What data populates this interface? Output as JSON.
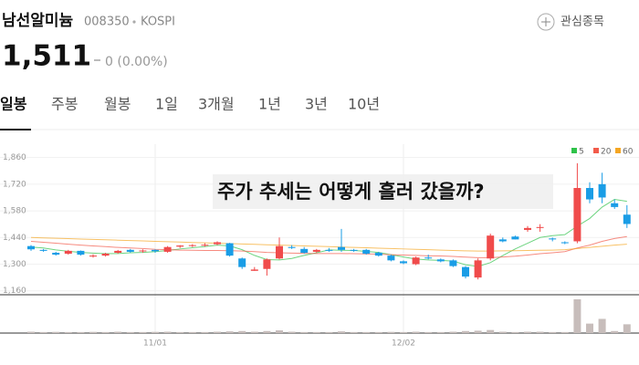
{
  "header": {
    "name": "남선알미늄",
    "code": "008350",
    "market": "KOSPI",
    "watch_label": "관심종목"
  },
  "quote": {
    "price": "1,511",
    "change": "0 (0.00%)"
  },
  "tabs": [
    "일봉",
    "주봉",
    "월봉",
    "1일",
    "3개월",
    "1년",
    "3년",
    "10년"
  ],
  "chart_data": {
    "type": "candlestick",
    "title": "주가 추세는 어떻게 흘러 갔을까?",
    "categories": [
      null,
      null,
      null,
      null,
      null,
      null,
      null,
      null,
      null,
      null,
      "11/01",
      null,
      null,
      null,
      null,
      null,
      null,
      null,
      null,
      null,
      null,
      null,
      null,
      null,
      null,
      null,
      null,
      null,
      null,
      null,
      "12/02",
      null,
      null,
      null,
      null,
      null,
      null,
      null,
      null,
      null,
      null,
      null,
      null,
      null,
      null,
      null,
      null,
      null,
      null
    ],
    "open": [
      1395,
      1375,
      1360,
      1355,
      1370,
      1340,
      1345,
      1360,
      1375,
      1370,
      1375,
      1365,
      1392,
      1398,
      1400,
      1405,
      1410,
      1330,
      1265,
      1275,
      1330,
      1390,
      1380,
      1365,
      1375,
      1390,
      1375,
      1375,
      1360,
      1345,
      1315,
      1300,
      1335,
      1325,
      1320,
      1285,
      1230,
      1330,
      1430,
      1445,
      1480,
      1490,
      1435,
      1415,
      1420,
      1700,
      1720,
      1620,
      1560
    ],
    "high": [
      1400,
      1380,
      1365,
      1375,
      1372,
      1352,
      1360,
      1375,
      1380,
      1378,
      1378,
      1395,
      1400,
      1405,
      1410,
      1420,
      1412,
      1335,
      1285,
      1330,
      1440,
      1400,
      1390,
      1380,
      1385,
      1485,
      1380,
      1380,
      1365,
      1350,
      1320,
      1340,
      1350,
      1330,
      1325,
      1290,
      1330,
      1460,
      1440,
      1450,
      1500,
      1510,
      1440,
      1420,
      1830,
      1730,
      1780,
      1640,
      1610
    ],
    "low": [
      1370,
      1365,
      1345,
      1350,
      1345,
      1335,
      1340,
      1355,
      1360,
      1360,
      1360,
      1360,
      1385,
      1390,
      1392,
      1400,
      1340,
      1275,
      1265,
      1240,
      1325,
      1380,
      1355,
      1360,
      1365,
      1365,
      1365,
      1350,
      1340,
      1315,
      1300,
      1295,
      1325,
      1310,
      1285,
      1225,
      1220,
      1320,
      1415,
      1430,
      1470,
      1470,
      1420,
      1405,
      1410,
      1620,
      1620,
      1590,
      1490
    ],
    "close": [
      1378,
      1370,
      1350,
      1370,
      1350,
      1345,
      1355,
      1370,
      1365,
      1372,
      1368,
      1390,
      1398,
      1400,
      1402,
      1415,
      1345,
      1285,
      1272,
      1325,
      1395,
      1385,
      1360,
      1375,
      1370,
      1375,
      1370,
      1355,
      1345,
      1320,
      1305,
      1335,
      1330,
      1315,
      1290,
      1235,
      1320,
      1450,
      1420,
      1430,
      1490,
      1495,
      1430,
      1410,
      1700,
      1640,
      1650,
      1600,
      1511
    ],
    "volume": [
      40,
      30,
      35,
      30,
      30,
      35,
      30,
      40,
      30,
      30,
      35,
      40,
      30,
      30,
      30,
      40,
      50,
      60,
      40,
      60,
      80,
      40,
      30,
      30,
      30,
      50,
      30,
      30,
      30,
      35,
      30,
      40,
      30,
      30,
      40,
      60,
      70,
      90,
      40,
      30,
      40,
      40,
      30,
      30,
      1000,
      280,
      420,
      60,
      260
    ],
    "up_color": "#f04b4b",
    "down_color": "#1a9de6",
    "volume_color": "#c7bdbb",
    "ma_series": [
      {
        "name": "5",
        "color": "#2fc24a",
        "values": [
          1390,
          1385,
          1375,
          1368,
          1362,
          1358,
          1355,
          1356,
          1360,
          1362,
          1366,
          1372,
          1380,
          1386,
          1392,
          1400,
          1396,
          1376,
          1346,
          1324,
          1322,
          1330,
          1346,
          1360,
          1375,
          1373,
          1372,
          1367,
          1362,
          1350,
          1338,
          1327,
          1322,
          1320,
          1316,
          1297,
          1288,
          1308,
          1345,
          1380,
          1410,
          1440,
          1450,
          1455,
          1500,
          1540,
          1600,
          1640,
          1630
        ]
      },
      {
        "name": "20",
        "color": "#f25a4a",
        "values": [
          1420,
          1415,
          1410,
          1405,
          1400,
          1396,
          1392,
          1388,
          1385,
          1382,
          1378,
          1376,
          1374,
          1373,
          1372,
          1372,
          1371,
          1369,
          1366,
          1362,
          1360,
          1358,
          1357,
          1356,
          1356,
          1356,
          1355,
          1354,
          1353,
          1350,
          1348,
          1346,
          1344,
          1343,
          1341,
          1337,
          1334,
          1334,
          1338,
          1342,
          1348,
          1355,
          1360,
          1366,
          1385,
          1400,
          1420,
          1435,
          1445
        ]
      },
      {
        "name": "60",
        "color": "#f5a623",
        "values": [
          1440,
          1438,
          1436,
          1434,
          1432,
          1430,
          1428,
          1426,
          1424,
          1422,
          1420,
          1418,
          1416,
          1414,
          1412,
          1410,
          1408,
          1406,
          1404,
          1402,
          1400,
          1398,
          1396,
          1394,
          1392,
          1390,
          1388,
          1386,
          1384,
          1382,
          1380,
          1378,
          1376,
          1374,
          1372,
          1370,
          1369,
          1369,
          1370,
          1371,
          1372,
          1373,
          1374,
          1376,
          1382,
          1388,
          1394,
          1400,
          1405
        ]
      }
    ],
    "ylim": [
      1130,
      1930
    ],
    "yticks": [
      {
        "value": 1860,
        "label": "1,860"
      },
      {
        "value": 1720,
        "label": "1,720"
      },
      {
        "value": 1580,
        "label": "1,580"
      },
      {
        "value": 1440,
        "label": "1,440"
      },
      {
        "value": 1300,
        "label": "1,300"
      },
      {
        "value": 1160,
        "label": "1,160"
      }
    ],
    "grid": true
  }
}
